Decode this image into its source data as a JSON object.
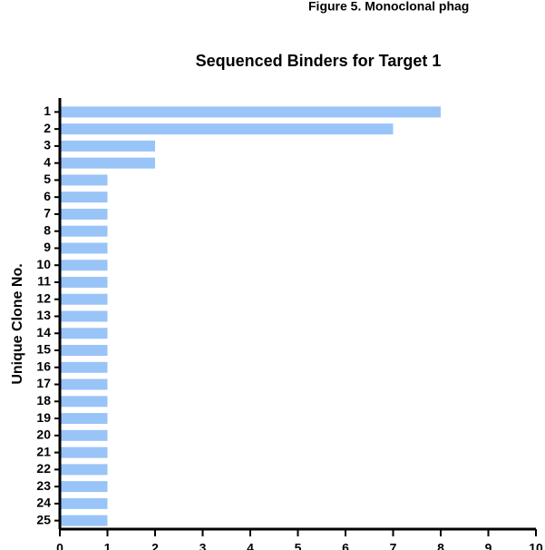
{
  "caption": "Figure 5. Monoclonal phag",
  "chart_data": {
    "type": "barh",
    "title": "Sequenced Binders for Target 1",
    "y_label": "Unique Clone No.",
    "categories": [
      "1",
      "2",
      "3",
      "4",
      "5",
      "6",
      "7",
      "8",
      "9",
      "10",
      "11",
      "12",
      "13",
      "14",
      "15",
      "16",
      "17",
      "18",
      "19",
      "20",
      "21",
      "22",
      "23",
      "24",
      "25"
    ],
    "values": [
      8,
      7,
      2,
      2,
      1,
      1,
      1,
      1,
      1,
      1,
      1,
      1,
      1,
      1,
      1,
      1,
      1,
      1,
      1,
      1,
      1,
      1,
      1,
      1,
      1
    ],
    "color": "#99c4f7",
    "xlim": [
      0,
      10
    ],
    "xticks": [
      0,
      1,
      2,
      3,
      4,
      5,
      6,
      7,
      8,
      9,
      10
    ]
  }
}
